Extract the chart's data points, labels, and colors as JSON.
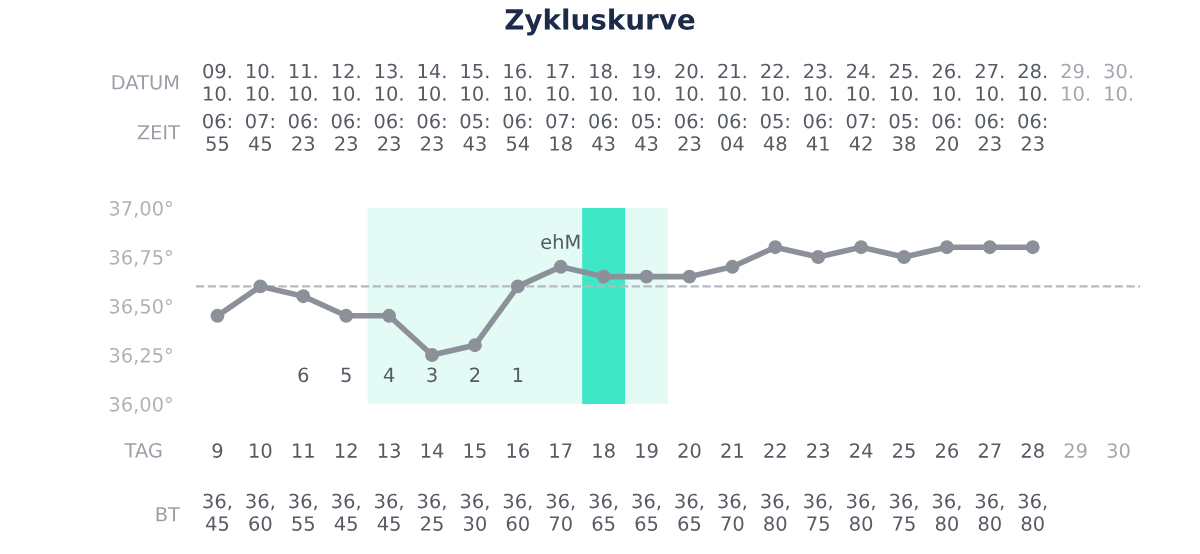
{
  "chart_data": {
    "type": "line",
    "title": "Zykluskurve",
    "categories": [
      "9",
      "10",
      "11",
      "12",
      "13",
      "14",
      "15",
      "16",
      "17",
      "18",
      "19",
      "20",
      "21",
      "22",
      "23",
      "24",
      "25",
      "26",
      "27",
      "28",
      "29",
      "30"
    ],
    "xlabel": "TAG",
    "ylim": [
      36.0,
      37.0
    ],
    "yticks": [
      {
        "value": 36.0,
        "label": "36,00°"
      },
      {
        "value": 36.25,
        "label": "36,25°"
      },
      {
        "value": 36.5,
        "label": "36,50°"
      },
      {
        "value": 36.75,
        "label": "36,75°"
      },
      {
        "value": 37.0,
        "label": "37,00°"
      }
    ],
    "series": [
      {
        "color": "#8c9099",
        "values": [
          36.45,
          36.6,
          36.55,
          36.45,
          36.45,
          36.25,
          36.3,
          36.6,
          36.7,
          36.65,
          36.65,
          36.65,
          36.7,
          36.8,
          36.75,
          36.8,
          36.75,
          36.8,
          36.8,
          36.8,
          null,
          null
        ],
        "value_labels": [
          "36,45",
          "36,60",
          "36,55",
          "36,45",
          "36,45",
          "36,25",
          "36,30",
          "36,60",
          "36,70",
          "36,65",
          "36,65",
          "36,65",
          "36,70",
          "36,80",
          "36,75",
          "36,80",
          "36,75",
          "36,80",
          "36,80",
          "36,80",
          null,
          null
        ]
      }
    ],
    "marker": "circle",
    "ref_lines": [
      {
        "axis": "y",
        "value": 36.6,
        "color": "#b5b9c0",
        "line_style": "dashed"
      }
    ],
    "bands": [
      {
        "axis": "x",
        "from": "13",
        "to": "19",
        "color": "#e3faf5"
      },
      {
        "axis": "x",
        "from": "18",
        "to": "18",
        "color": "#3ee8c6"
      }
    ],
    "annotations": [
      "DATUM",
      "ZEIT",
      "BT",
      "09.\n10.",
      "10.\n10.",
      "11.\n10.",
      "12.\n10.",
      "13.\n10.",
      "14.\n10.",
      "15.\n10.",
      "16.\n10.",
      "17.\n10.",
      "18.\n10.",
      "19.\n10.",
      "20.\n10.",
      "21.\n10.",
      "22.\n10.",
      "23.\n10.",
      "24.\n10.",
      "25.\n10.",
      "26.\n10.",
      "27.\n10.",
      "28.\n10.",
      "29.\n10.",
      "30.\n10.",
      "06:\n55",
      "07:\n45",
      "06:\n23",
      "06:\n23",
      "06:\n23",
      "06:\n23",
      "05:\n43",
      "06:\n54",
      "07:\n18",
      "06:\n43",
      "05:\n43",
      "06:\n23",
      "06:\n04",
      "05:\n48",
      "06:\n41",
      "07:\n42",
      "05:\n38",
      "06:\n20",
      "06:\n23",
      "06:\n23",
      "6",
      "5",
      "4",
      "3",
      "2",
      "1",
      {
        "text": "ehM",
        "x": "17",
        "y": 36.7
      }
    ]
  }
}
